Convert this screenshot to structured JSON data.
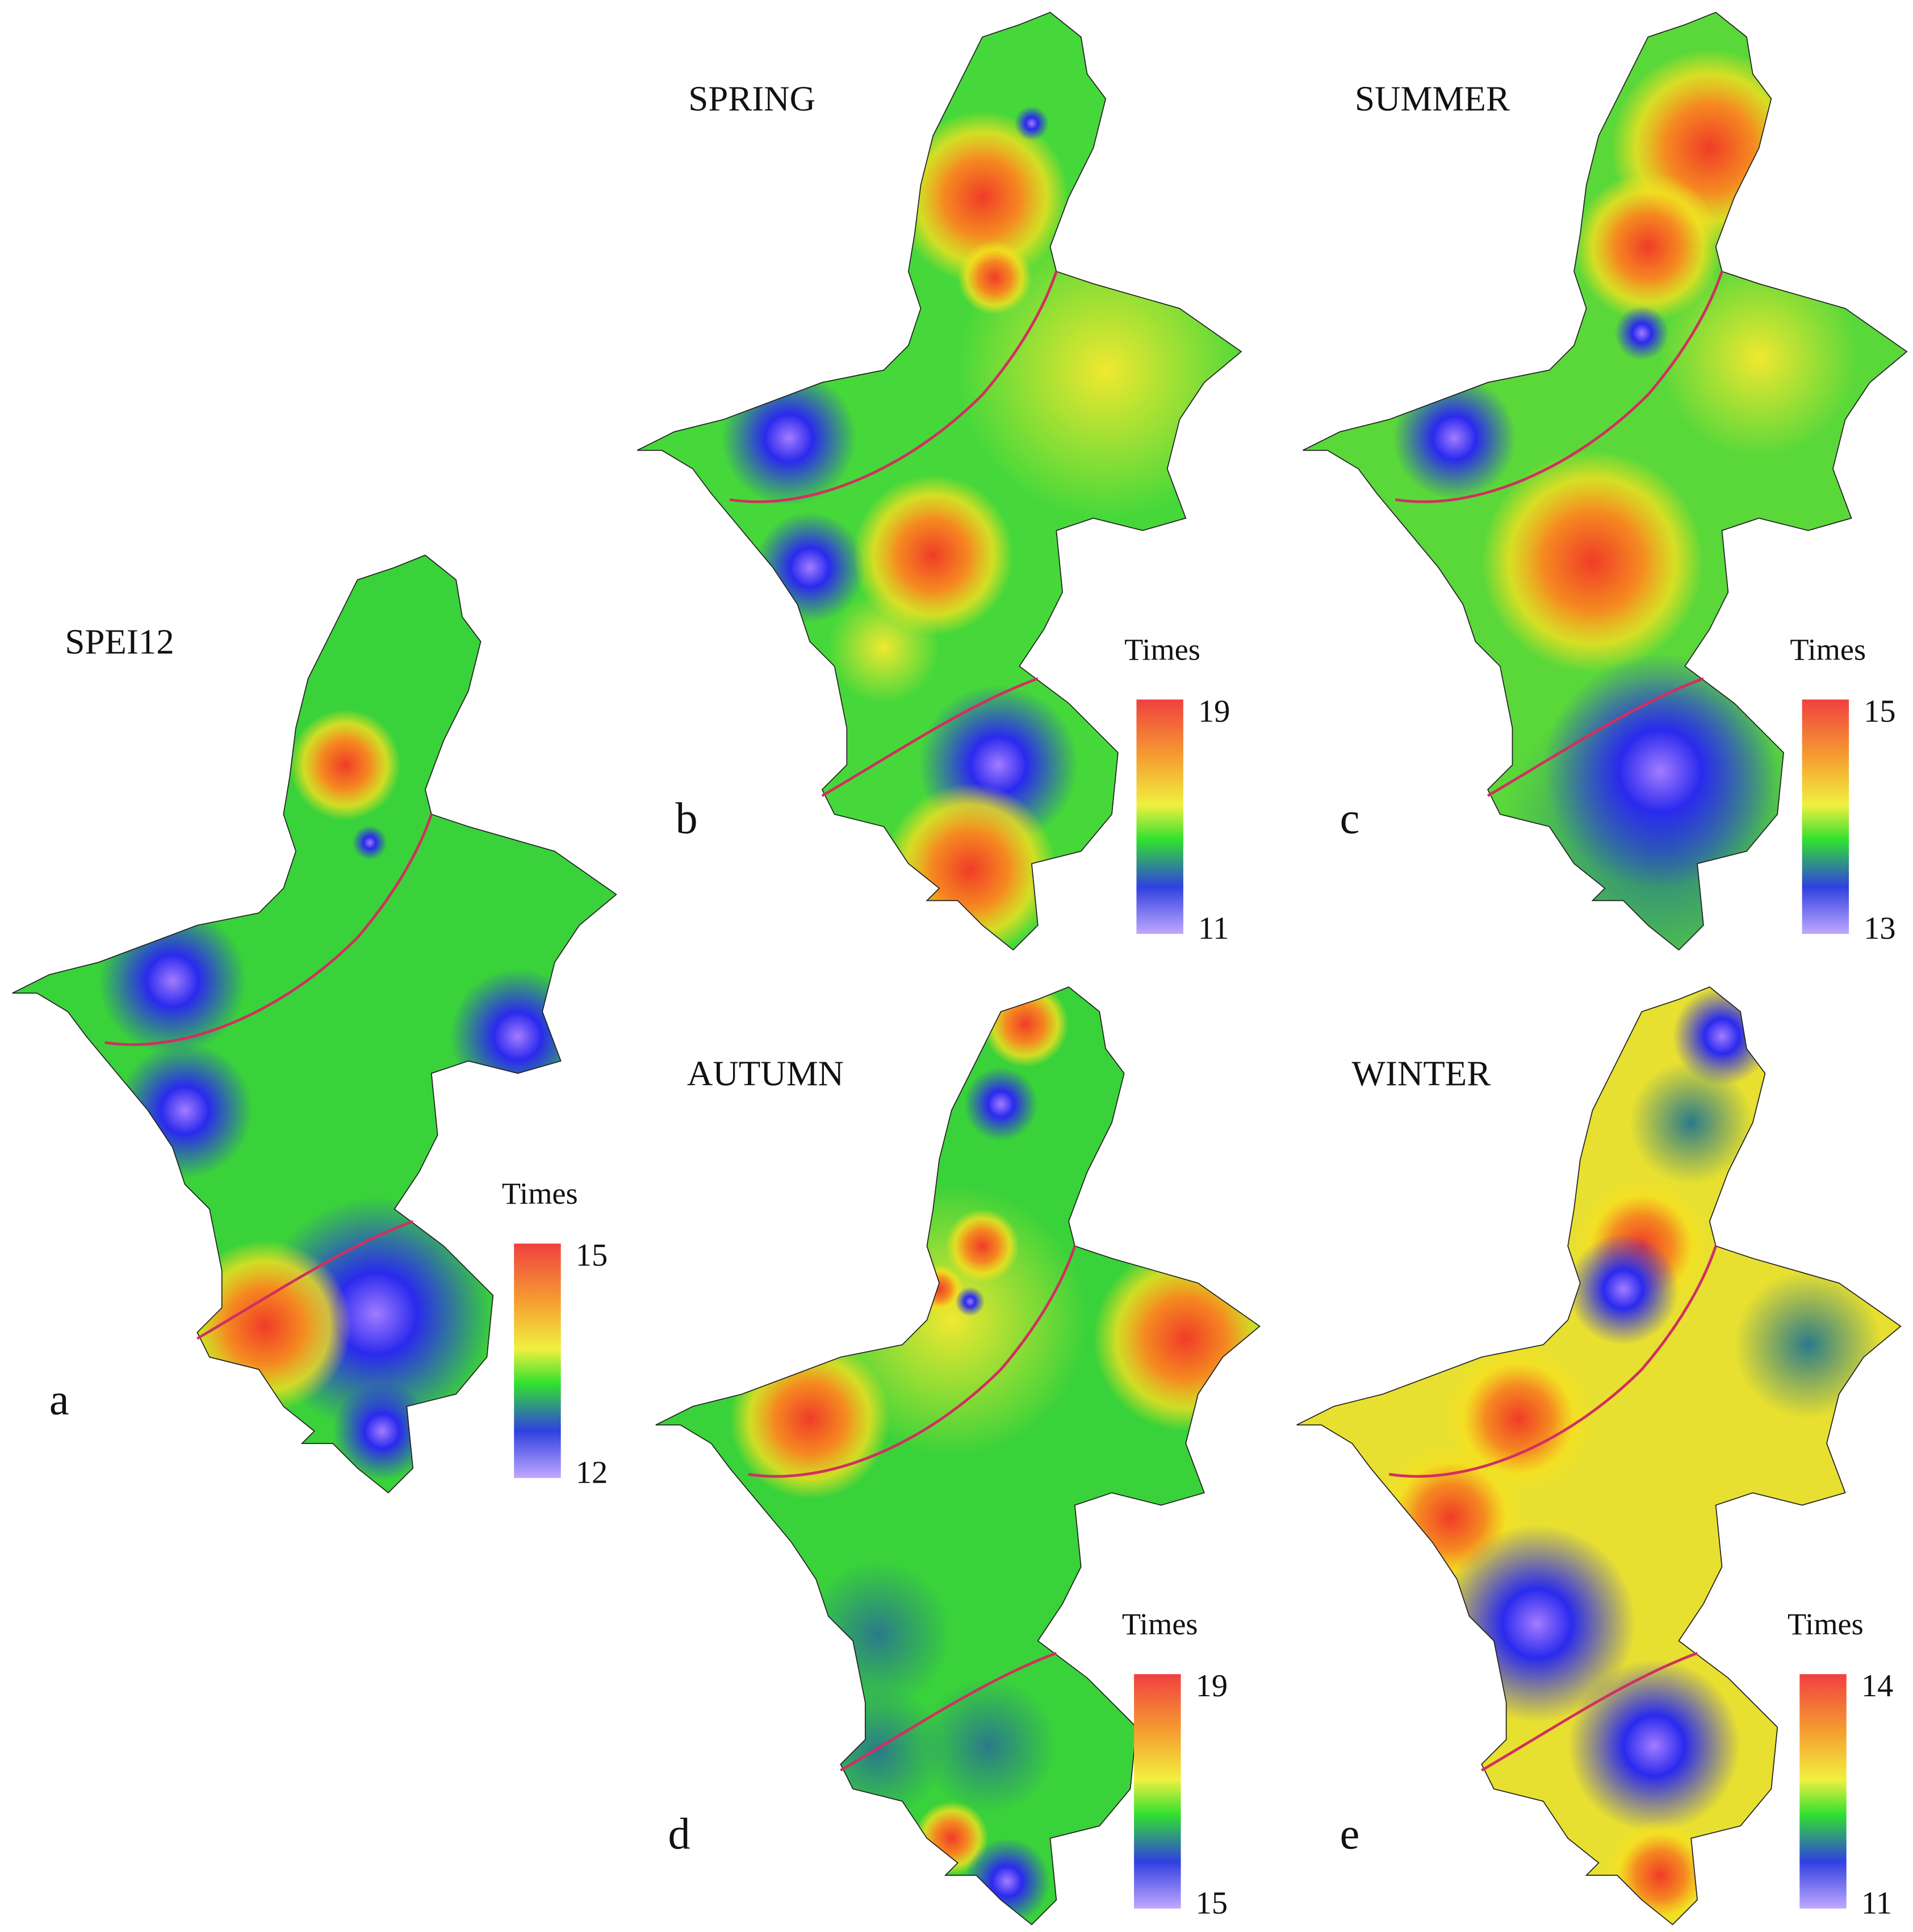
{
  "panels": [
    {
      "title": "SPEI12",
      "letter": "a",
      "legend": {
        "title": "Times",
        "max": 15,
        "min": 12
      }
    },
    {
      "title": "SPRING",
      "letter": "b",
      "legend": {
        "title": "Times",
        "max": 19,
        "min": 11
      }
    },
    {
      "title": "SUMMER",
      "letter": "c",
      "legend": {
        "title": "Times",
        "max": 15,
        "min": 13
      }
    },
    {
      "title": "AUTUMN",
      "letter": "d",
      "legend": {
        "title": "Times",
        "max": 19,
        "min": 15
      }
    },
    {
      "title": "WINTER",
      "letter": "e",
      "legend": {
        "title": "Times",
        "max": 14,
        "min": 11
      }
    }
  ]
}
